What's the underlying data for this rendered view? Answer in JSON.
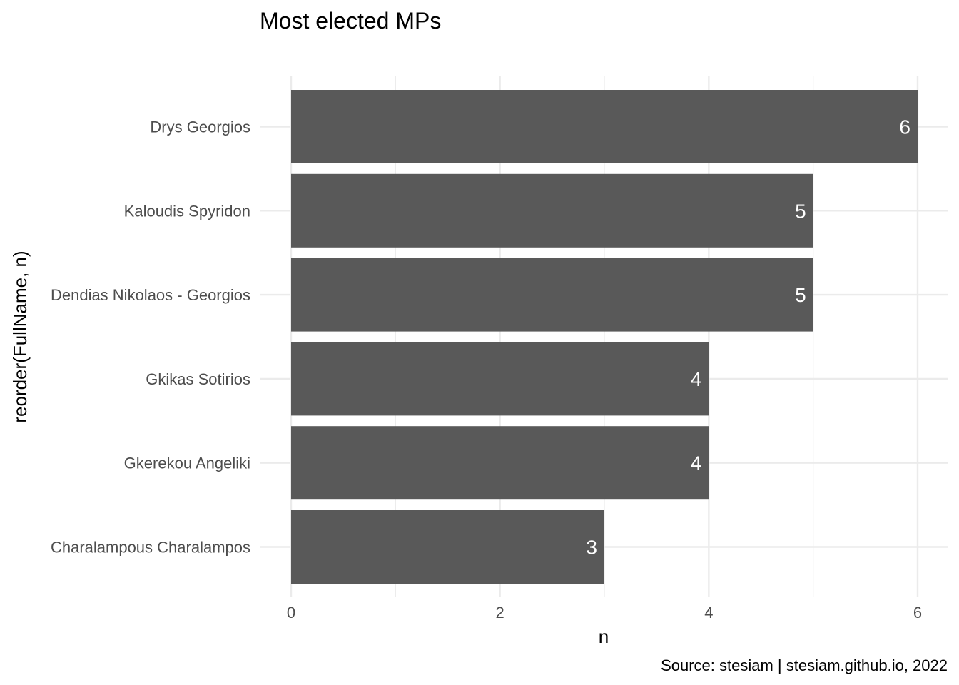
{
  "chart_data": {
    "type": "bar",
    "orientation": "horizontal",
    "title": "Most elected MPs",
    "xlabel": "n",
    "ylabel": "reorder(FullName, n)",
    "caption": "Source: stesiam | stesiam.github.io, 2022",
    "categories": [
      "Drys Georgios",
      "Kaloudis Spyridon",
      "Dendias Nikolaos - Georgios",
      "Gkikas Sotirios",
      "Gkerekou Angeliki",
      "Charalampous Charalampos"
    ],
    "values": [
      6,
      5,
      5,
      4,
      4,
      3
    ],
    "xlim": [
      0,
      6
    ],
    "xticks": [
      0,
      2,
      4,
      6
    ],
    "grid": true,
    "bar_color": "#595959",
    "grid_color": "#ebebeb",
    "data_label_color": "#ffffff"
  }
}
